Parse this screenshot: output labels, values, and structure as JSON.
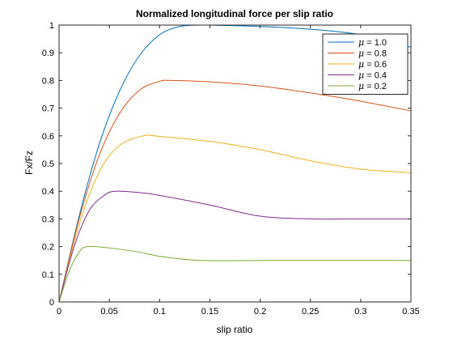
{
  "chart_data": {
    "type": "line",
    "title": "Normalized longitudinal force per slip ratio",
    "xlabel": "slip ratio",
    "ylabel": "Fx/Fz",
    "xlim": [
      0,
      0.35
    ],
    "ylim": [
      0,
      1
    ],
    "x_ticks": [
      "0",
      "0.05",
      "0.1",
      "0.15",
      "0.2",
      "0.25",
      "0.3",
      "0.35"
    ],
    "y_ticks": [
      "0",
      "0.1",
      "0.2",
      "0.3",
      "0.4",
      "0.5",
      "0.6",
      "0.7",
      "0.8",
      "0.9",
      "1"
    ],
    "grid": false,
    "legend_position": "top-right",
    "series": [
      {
        "name": "μ = 1.0",
        "label_symbol": "μ",
        "label_value": " = 1.0",
        "color": "#0072BD",
        "x": [
          0,
          0.02,
          0.04,
          0.06,
          0.08,
          0.1,
          0.12,
          0.14,
          0.16,
          0.2,
          0.25,
          0.3,
          0.35
        ],
        "y": [
          0,
          0.31,
          0.57,
          0.76,
          0.89,
          0.965,
          0.995,
          1.0,
          0.999,
          0.995,
          0.985,
          0.965,
          0.92
        ]
      },
      {
        "name": "μ = 0.8",
        "label_symbol": "μ",
        "label_value": " = 0.8",
        "color": "#D95319",
        "x": [
          0,
          0.02,
          0.04,
          0.06,
          0.08,
          0.1,
          0.112,
          0.15,
          0.2,
          0.25,
          0.3,
          0.35
        ],
        "y": [
          0,
          0.3,
          0.53,
          0.68,
          0.765,
          0.797,
          0.8,
          0.795,
          0.78,
          0.755,
          0.725,
          0.69
        ]
      },
      {
        "name": "μ = 0.6",
        "label_symbol": "μ",
        "label_value": " = 0.6",
        "color": "#EDB120",
        "x": [
          0,
          0.02,
          0.04,
          0.06,
          0.084,
          0.1,
          0.15,
          0.2,
          0.25,
          0.3,
          0.35
        ],
        "y": [
          0,
          0.28,
          0.47,
          0.565,
          0.6,
          0.598,
          0.58,
          0.55,
          0.51,
          0.48,
          0.467
        ]
      },
      {
        "name": "μ = 0.4",
        "label_symbol": "μ",
        "label_value": " = 0.4",
        "color": "#7E2F8E",
        "x": [
          0,
          0.015,
          0.03,
          0.045,
          0.056,
          0.08,
          0.1,
          0.15,
          0.2,
          0.25,
          0.3,
          0.35
        ],
        "y": [
          0,
          0.2,
          0.33,
          0.385,
          0.4,
          0.395,
          0.385,
          0.35,
          0.31,
          0.3,
          0.3,
          0.3
        ]
      },
      {
        "name": "μ = 0.2",
        "label_symbol": "μ",
        "label_value": " = 0.2",
        "color": "#77AC30",
        "x": [
          0,
          0.01,
          0.02,
          0.028,
          0.05,
          0.08,
          0.1,
          0.14,
          0.2,
          0.25,
          0.3,
          0.35
        ],
        "y": [
          0,
          0.11,
          0.18,
          0.2,
          0.195,
          0.18,
          0.165,
          0.15,
          0.15,
          0.15,
          0.15,
          0.15
        ]
      }
    ]
  }
}
